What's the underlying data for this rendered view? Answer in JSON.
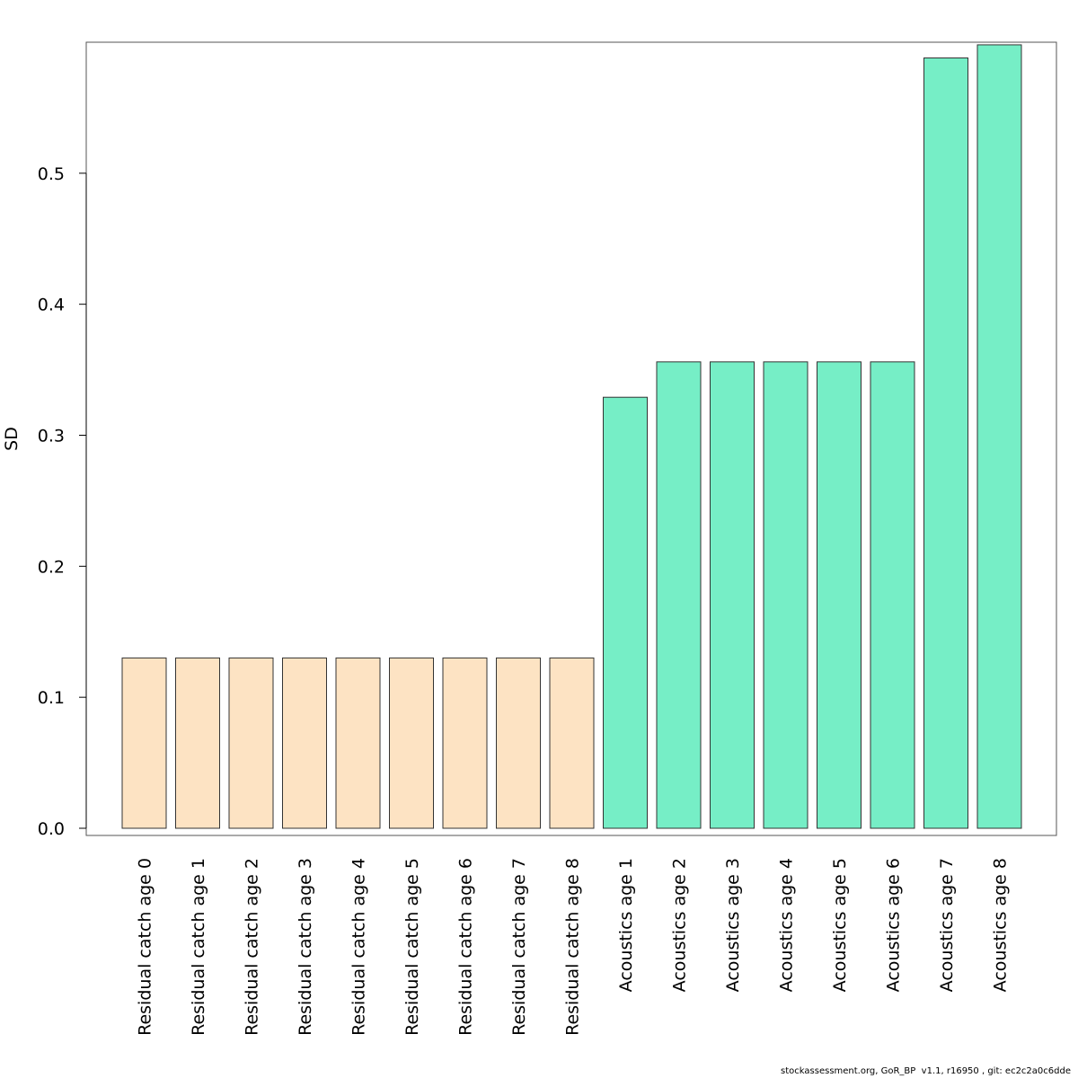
{
  "chart_data": {
    "type": "bar",
    "title": "",
    "xlabel": "",
    "ylabel": "SD",
    "ylim": [
      0,
      0.6
    ],
    "yticks": [
      0.0,
      0.1,
      0.2,
      0.3,
      0.4,
      0.5
    ],
    "ytick_labels": [
      "0.0",
      "0.1",
      "0.2",
      "0.3",
      "0.4",
      "0.5"
    ],
    "grid": false,
    "categories": [
      "Residual catch age 0",
      "Residual catch age 1",
      "Residual catch age 2",
      "Residual catch age 3",
      "Residual catch age 4",
      "Residual catch age 5",
      "Residual catch age 6",
      "Residual catch age 7",
      "Residual catch age 8",
      "Acoustics age 1",
      "Acoustics age 2",
      "Acoustics age 3",
      "Acoustics age 4",
      "Acoustics age 5",
      "Acoustics age 6",
      "Acoustics age 7",
      "Acoustics age 8"
    ],
    "values": [
      0.13,
      0.13,
      0.13,
      0.13,
      0.13,
      0.13,
      0.13,
      0.13,
      0.13,
      0.329,
      0.356,
      0.356,
      0.356,
      0.356,
      0.356,
      0.588,
      0.598
    ],
    "bar_colors": [
      "#fde3c3",
      "#fde3c3",
      "#fde3c3",
      "#fde3c3",
      "#fde3c3",
      "#fde3c3",
      "#fde3c3",
      "#fde3c3",
      "#fde3c3",
      "#76eec6",
      "#76eec6",
      "#76eec6",
      "#76eec6",
      "#76eec6",
      "#76eec6",
      "#76eec6",
      "#76eec6"
    ]
  },
  "footer": {
    "text": "stockassessment.org, GoR_BP  v1.1, r16950 , git: ec2c2a0c6dde"
  }
}
